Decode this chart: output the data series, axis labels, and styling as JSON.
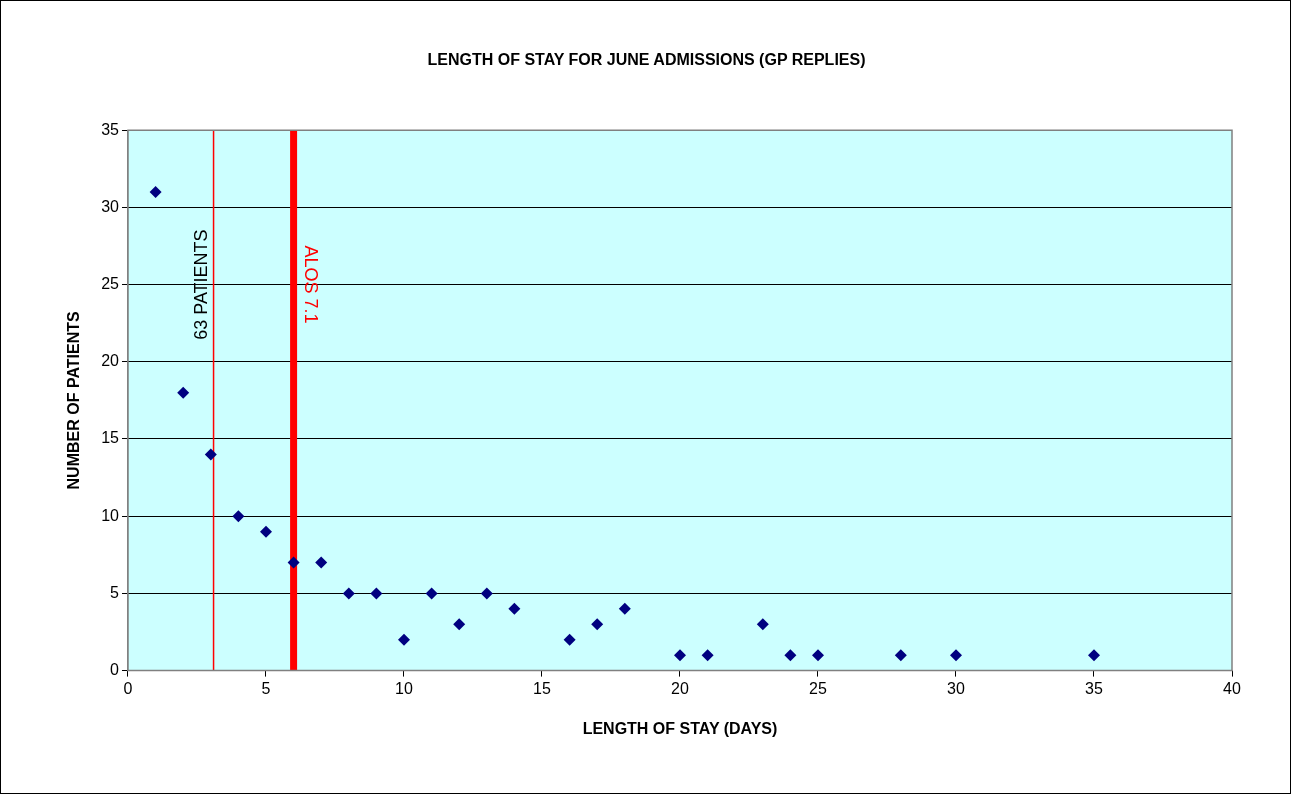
{
  "chart_data": {
    "type": "scatter",
    "title": "LENGTH OF STAY FOR JUNE ADMISSIONS (GP REPLIES)",
    "xlabel": "LENGTH OF STAY (DAYS)",
    "ylabel": "NUMBER OF PATIENTS",
    "x": [
      1,
      2,
      3,
      4,
      5,
      6,
      7,
      8,
      9,
      10,
      11,
      12,
      13,
      14,
      16,
      17,
      18,
      20,
      21,
      23,
      24,
      25,
      28,
      30,
      35
    ],
    "series": [
      {
        "color": "#000080",
        "values": [
          31,
          18,
          14,
          10,
          9,
          7,
          7,
          5,
          5,
          2,
          5,
          3,
          5,
          4,
          2,
          3,
          4,
          1,
          1,
          3,
          1,
          1,
          1,
          1,
          1
        ]
      }
    ],
    "xlim": [
      0,
      40
    ],
    "xticks": [
      0,
      5,
      10,
      15,
      20,
      25,
      30,
      35,
      40
    ],
    "ylim": [
      0,
      35
    ],
    "yticks": [
      0,
      5,
      10,
      15,
      20,
      25,
      30,
      35
    ],
    "grid": "y",
    "legend": false,
    "marker": "diamond",
    "ref_lines": [
      {
        "axis": "x",
        "value": 3.1,
        "label": "63 PATIENTS",
        "color": "#ff0000"
      },
      {
        "axis": "x",
        "value": 6,
        "label": "ALOS 7.1",
        "color": "#ff0000"
      }
    ]
  }
}
